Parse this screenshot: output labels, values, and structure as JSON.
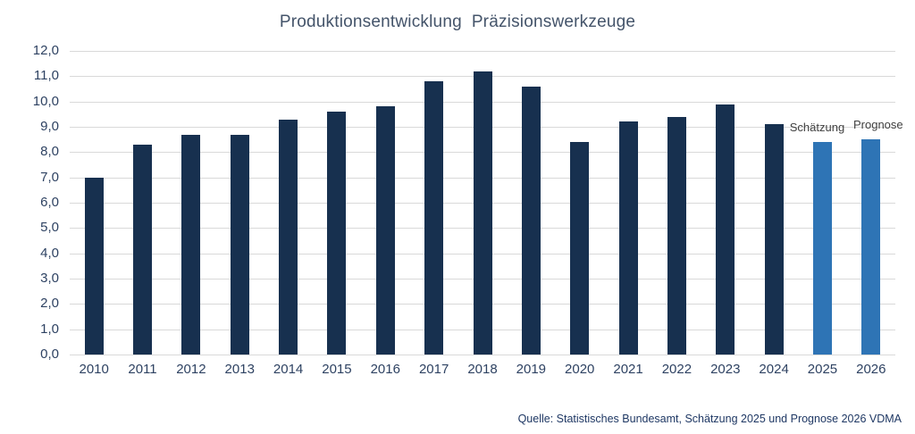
{
  "title": "Produktionsentwicklung  Präzisionswerkzeuge",
  "source_note": "Quelle: Statistisches Bundesamt, Schätzung 2025 und Prognose 2026 VDMA",
  "colors": {
    "bar_actual": "#17304F",
    "bar_forecast": "#2E74B5",
    "gridline": "#D9D9D9",
    "title_text": "#44546A",
    "axis_text": "#2E4262",
    "annotation_text": "#404040",
    "source_text": "#1F3864"
  },
  "chart_data": {
    "type": "bar",
    "title": "Produktionsentwicklung Präzisionswerkzeuge",
    "categories": [
      "2010",
      "2011",
      "2012",
      "2013",
      "2014",
      "2015",
      "2016",
      "2017",
      "2018",
      "2019",
      "2020",
      "2021",
      "2022",
      "2023",
      "2024",
      "2025",
      "2026"
    ],
    "values": [
      7.0,
      8.3,
      8.7,
      8.7,
      9.3,
      9.6,
      9.8,
      10.8,
      11.2,
      10.6,
      8.4,
      9.2,
      9.4,
      9.9,
      9.1,
      8.4,
      8.5
    ],
    "forecast_categories": [
      "2025",
      "2026"
    ],
    "annotations": [
      {
        "category": "2025",
        "label": "Schätzung"
      },
      {
        "category": "2026",
        "label": "Prognose"
      }
    ],
    "y_ticks": [
      "12,0",
      "11,0",
      "10,0",
      "9,0",
      "8,0",
      "7,0",
      "6,0",
      "5,0",
      "4,0",
      "3,0",
      "2,0",
      "1,0",
      "0,0"
    ],
    "ylim": [
      0,
      12
    ],
    "grid": "horizontal",
    "legend": "none",
    "xlabel": "",
    "ylabel": ""
  }
}
